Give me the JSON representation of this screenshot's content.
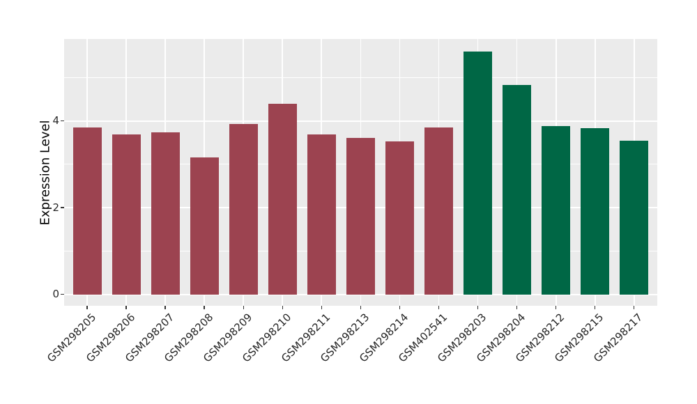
{
  "chart_data": {
    "type": "bar",
    "title": "",
    "xlabel": "",
    "ylabel": "Expression Level",
    "categories": [
      "GSM298205",
      "GSM298206",
      "GSM298207",
      "GSM298208",
      "GSM298209",
      "GSM298210",
      "GSM298211",
      "GSM298213",
      "GSM298214",
      "GSM402541",
      "GSM298203",
      "GSM298204",
      "GSM298212",
      "GSM298215",
      "GSM298217"
    ],
    "values": [
      3.84,
      3.68,
      3.73,
      3.16,
      3.92,
      4.39,
      3.68,
      3.61,
      3.52,
      3.85,
      5.6,
      4.82,
      3.88,
      3.83,
      3.54
    ],
    "bar_groups": [
      "maroon",
      "maroon",
      "maroon",
      "maroon",
      "maroon",
      "maroon",
      "maroon",
      "maroon",
      "maroon",
      "maroon",
      "green",
      "green",
      "green",
      "green",
      "green"
    ],
    "group_colors": {
      "maroon": "#9C4350",
      "green": "#006745"
    },
    "yticks": [
      0,
      2,
      4
    ],
    "minor_yticks": [
      1,
      3,
      5
    ],
    "ylim": [
      -0.28,
      5.88
    ],
    "x_tick_rotation_deg": 45,
    "legend": "none",
    "grid": "on",
    "panel_bg": "#EBEBEB",
    "grid_color": "#FFFFFF",
    "figure_bg": "#FFFFFF"
  }
}
